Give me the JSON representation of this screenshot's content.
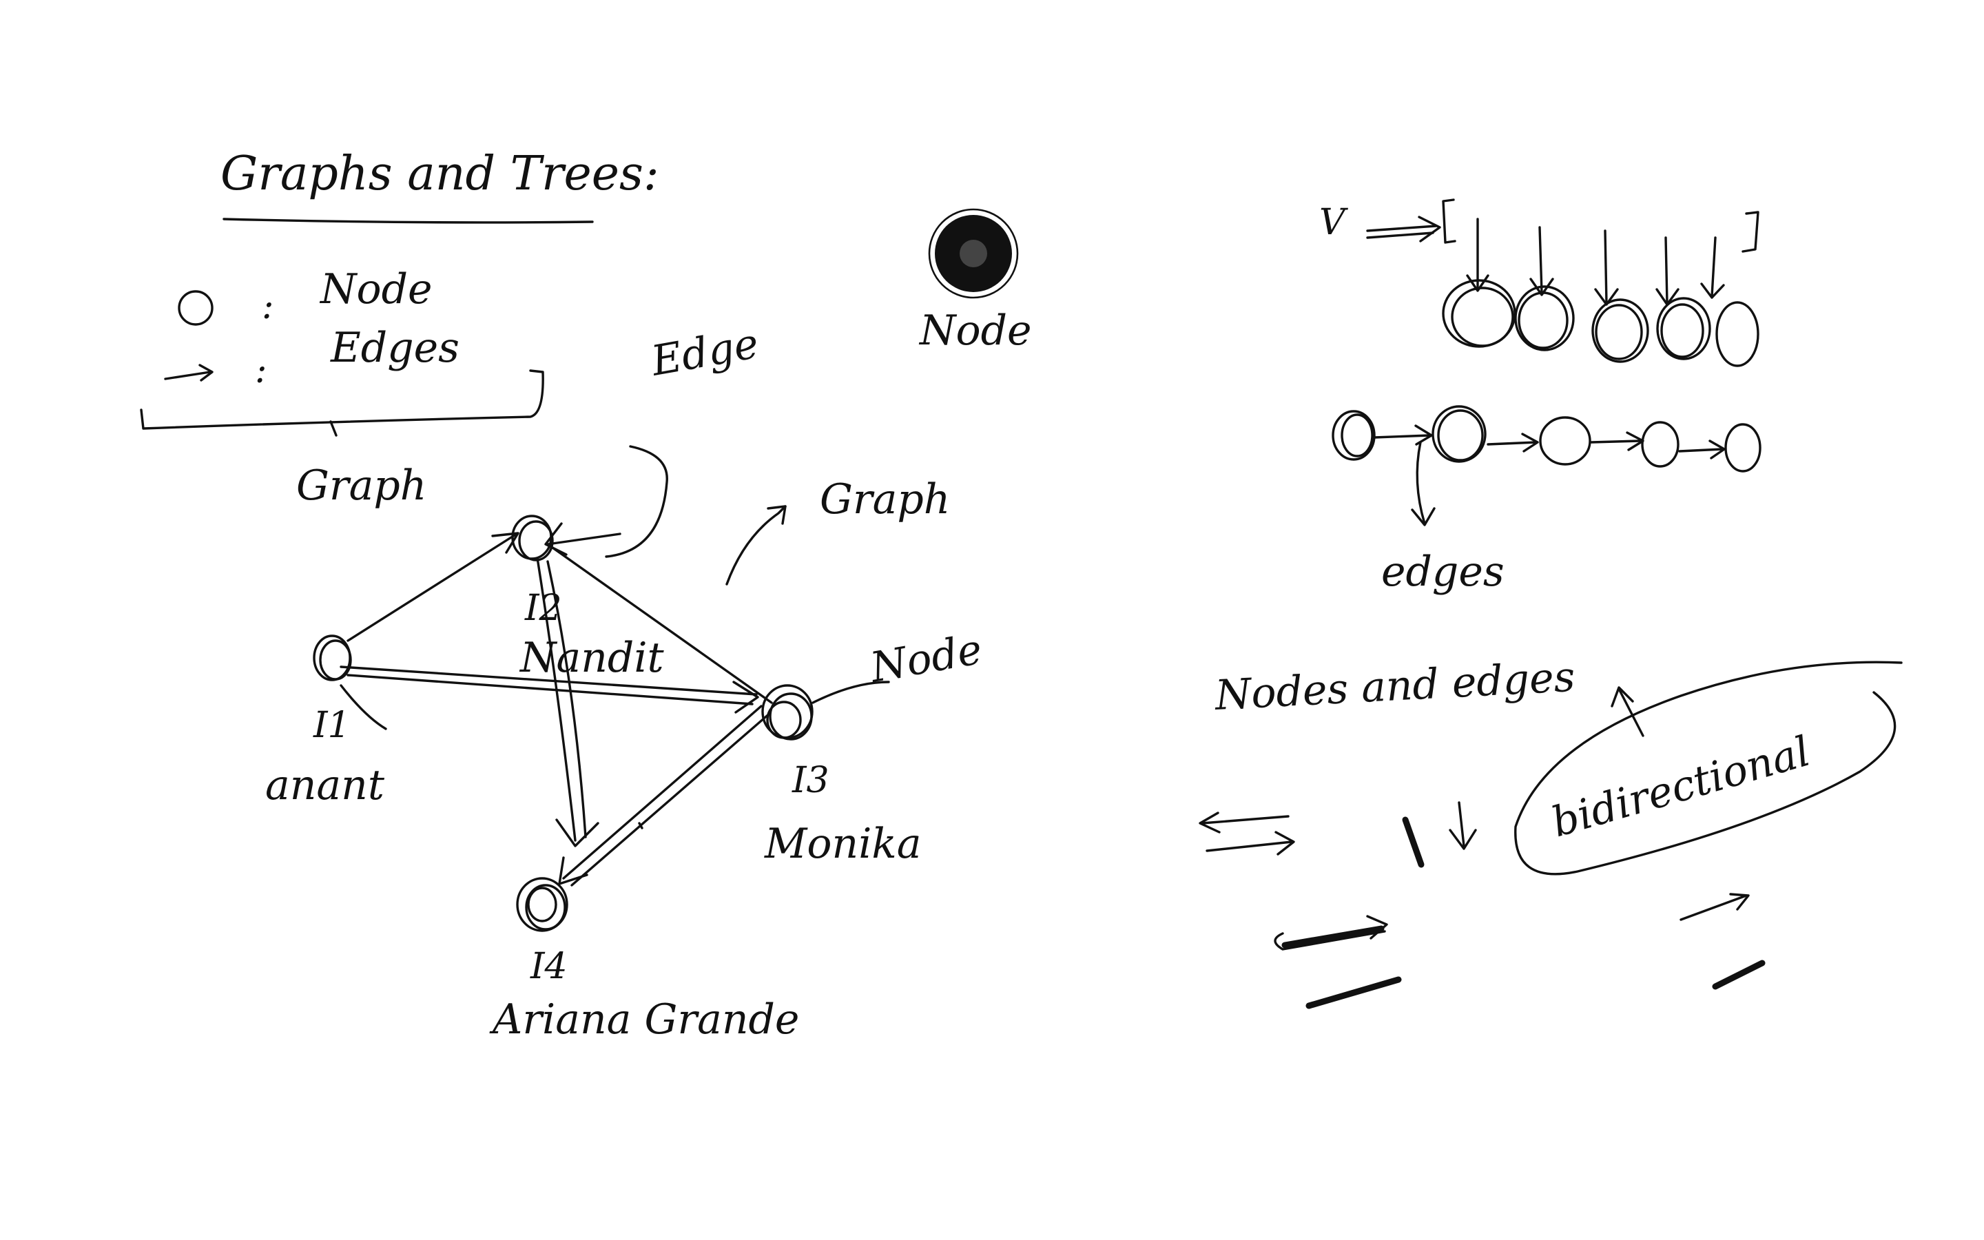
{
  "heading": "Graphs and Trees:",
  "legend": {
    "node_label": "Node",
    "edges_label": "Edges",
    "separator": ":",
    "brace_label": "Graph"
  },
  "free_labels": {
    "edge": "Edge",
    "node_top": "Node",
    "graph": "Graph",
    "node_right": "Node"
  },
  "graph_nodes": {
    "i1": {
      "id": "I1",
      "name": "anant"
    },
    "i2": {
      "id": "I2",
      "name": "Nandit"
    },
    "i3": {
      "id": "I3",
      "name": "Monika"
    },
    "i4": {
      "id": "I4",
      "name": "Ariana Grande"
    }
  },
  "right_panel": {
    "v_label": "V",
    "edges_label": "edges",
    "nodes_and_edges": "Nodes and edges",
    "bidirectional": "bidirectional"
  },
  "colors": {
    "ink": "#111111",
    "paper": "#ffffff"
  }
}
